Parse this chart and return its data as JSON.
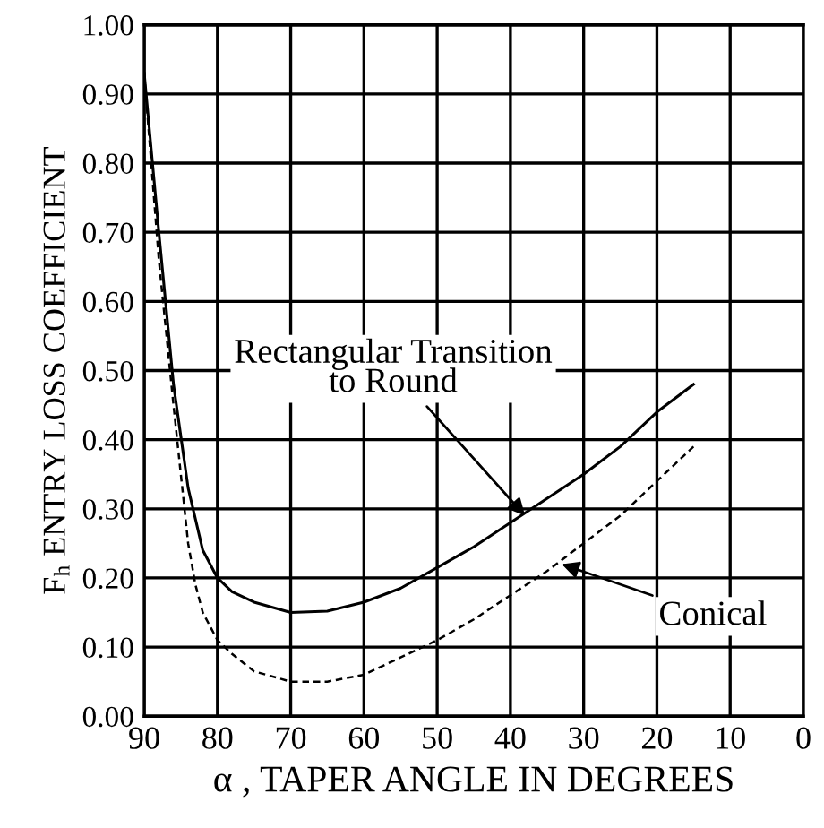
{
  "chart_data": {
    "type": "line",
    "xlabel": "α , TAPER ANGLE IN DEGREES",
    "ylabel": "F$_{h}$ ENTRY LOSS COEFFICIENT",
    "xlim": [
      90,
      0
    ],
    "ylim": [
      0,
      1
    ],
    "xticks": [
      90,
      80,
      70,
      60,
      50,
      40,
      30,
      20,
      10,
      0
    ],
    "yticks": [
      {
        "value": 0,
        "label": "0.00"
      },
      {
        "value": 0.1,
        "label": "0.10"
      },
      {
        "value": 0.2,
        "label": "0.20"
      },
      {
        "value": 0.3,
        "label": "0.30"
      },
      {
        "value": 0.4,
        "label": "0.40"
      },
      {
        "value": 0.5,
        "label": "0.50"
      },
      {
        "value": 0.6,
        "label": "0.60"
      },
      {
        "value": 0.7,
        "label": "0.70"
      },
      {
        "value": 0.8,
        "label": "0.80"
      },
      {
        "value": 0.9,
        "label": "0.90"
      },
      {
        "value": 1,
        "label": "1.00"
      }
    ],
    "grid": true,
    "legend": false,
    "marker": "none",
    "series": [
      {
        "color": "#000000",
        "line_style": "solid",
        "x": [
          90,
          88,
          86,
          84,
          82,
          80,
          78,
          75,
          70,
          65,
          60,
          55,
          50,
          45,
          40,
          35,
          30,
          25,
          20,
          15
        ],
        "values": [
          0.93,
          0.7,
          0.48,
          0.33,
          0.24,
          0.2,
          0.18,
          0.165,
          0.15,
          0.152,
          0.165,
          0.185,
          0.215,
          0.245,
          0.28,
          0.315,
          0.35,
          0.39,
          0.44,
          0.48
        ]
      },
      {
        "color": "#000000",
        "line_style": "dashed",
        "x": [
          90,
          88,
          86,
          84,
          83,
          82,
          80,
          78,
          75,
          70,
          65,
          60,
          55,
          50,
          45,
          40,
          35,
          30,
          25,
          20,
          15
        ],
        "values": [
          0.93,
          0.66,
          0.45,
          0.25,
          0.19,
          0.15,
          0.11,
          0.09,
          0.065,
          0.05,
          0.05,
          0.06,
          0.085,
          0.11,
          0.14,
          0.175,
          0.21,
          0.25,
          0.29,
          0.34,
          0.39
        ]
      }
    ],
    "annotations": [
      {
        "text": "Rectangular Transition\nto Round",
        "x": 38,
        "y": 0.29
      },
      {
        "text": "Conical",
        "x": 33,
        "y": 0.22
      }
    ]
  }
}
